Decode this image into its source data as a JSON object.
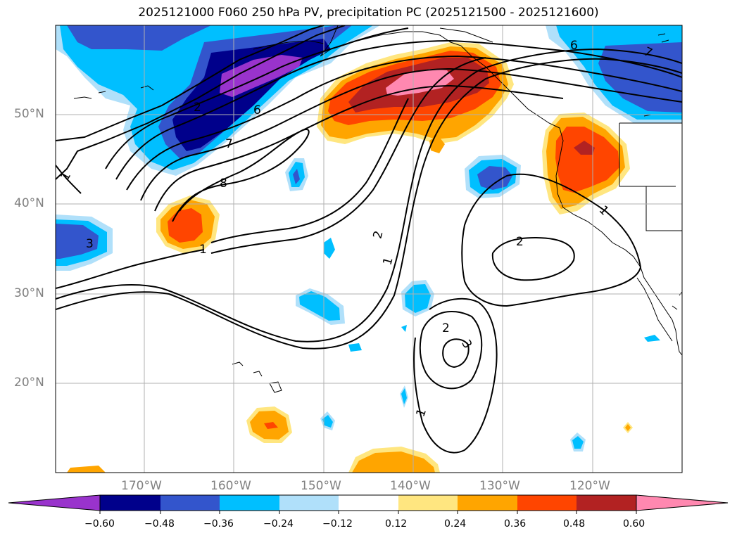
{
  "title": "2025121000 F060 250 hPa PV, precipitation PC (2025121500 - 2025121600)",
  "lat_labels": [
    "50°N",
    "40°N",
    "30°N",
    "20°N"
  ],
  "lon_labels": [
    "170°W",
    "160°W",
    "150°W",
    "140°W",
    "130°W",
    "120°W"
  ],
  "colorbar": {
    "ticks": [
      "−0.60",
      "−0.48",
      "−0.36",
      "−0.24",
      "−0.12",
      "0.12",
      "0.24",
      "0.36",
      "0.48",
      "0.60"
    ],
    "colors": [
      "#9933cc",
      "#00008b",
      "#3355cc",
      "#00bfff",
      "#b0e0fa",
      "#ffffff",
      "#ffe680",
      "#ffa500",
      "#ff4500",
      "#b22222",
      "#ff88b0"
    ]
  },
  "contour_labels": [
    "1",
    "2",
    "3",
    "6",
    "7",
    "8",
    "1",
    "2",
    "1",
    "2",
    "2",
    "3",
    "1",
    "1",
    "6",
    "7",
    "1",
    "3",
    "2"
  ]
}
